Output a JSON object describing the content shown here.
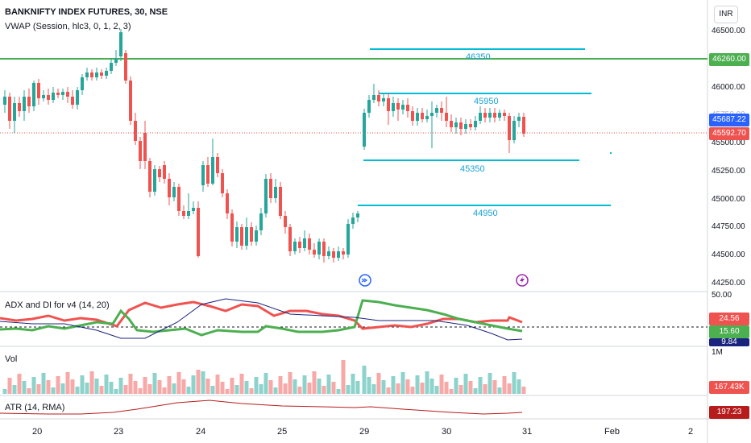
{
  "header": {
    "symbol_line": "BANKNIFTY INDEX FUTURES, 30, NSE",
    "vwap_line": "VWAP (Session, hlc3, 0, 1, 2, 3)",
    "currency": "INR"
  },
  "price_axis": {
    "ticks": [
      "46500.00",
      "46000.00",
      "45750.00",
      "45500.00",
      "45250.00",
      "45000.00",
      "44750.00",
      "44500.00",
      "44250.00"
    ],
    "badges": {
      "green_level": "46260.00",
      "blue_price": "45687.22",
      "last_price": "45592.70"
    }
  },
  "levels": [
    {
      "label": "46350"
    },
    {
      "label": "45950"
    },
    {
      "label": "45350"
    },
    {
      "label": "44950"
    }
  ],
  "adx": {
    "label": "ADX and DI for v4 (14, 20)",
    "axis_top": "50.00",
    "badges": {
      "red": "24.56",
      "green": "15.60",
      "dark": "9.84"
    }
  },
  "vol": {
    "label": "Vol",
    "axis_top": "1M",
    "badge": "167.43K"
  },
  "atr": {
    "label": "ATR (14, RMA)",
    "badge": "197.23"
  },
  "time_axis": [
    "20",
    "23",
    "24",
    "25",
    "29",
    "30",
    "31",
    "Feb",
    "2"
  ],
  "colors": {
    "up": "#26a69a",
    "down": "#ef5350",
    "green_line": "#4caf50",
    "level_line": "#00bcd4",
    "blue_badge": "#2962ff",
    "atr_line": "#b71c1c"
  },
  "icons": [
    "arrow-right-circle-icon",
    "lightning-circle-icon"
  ]
}
